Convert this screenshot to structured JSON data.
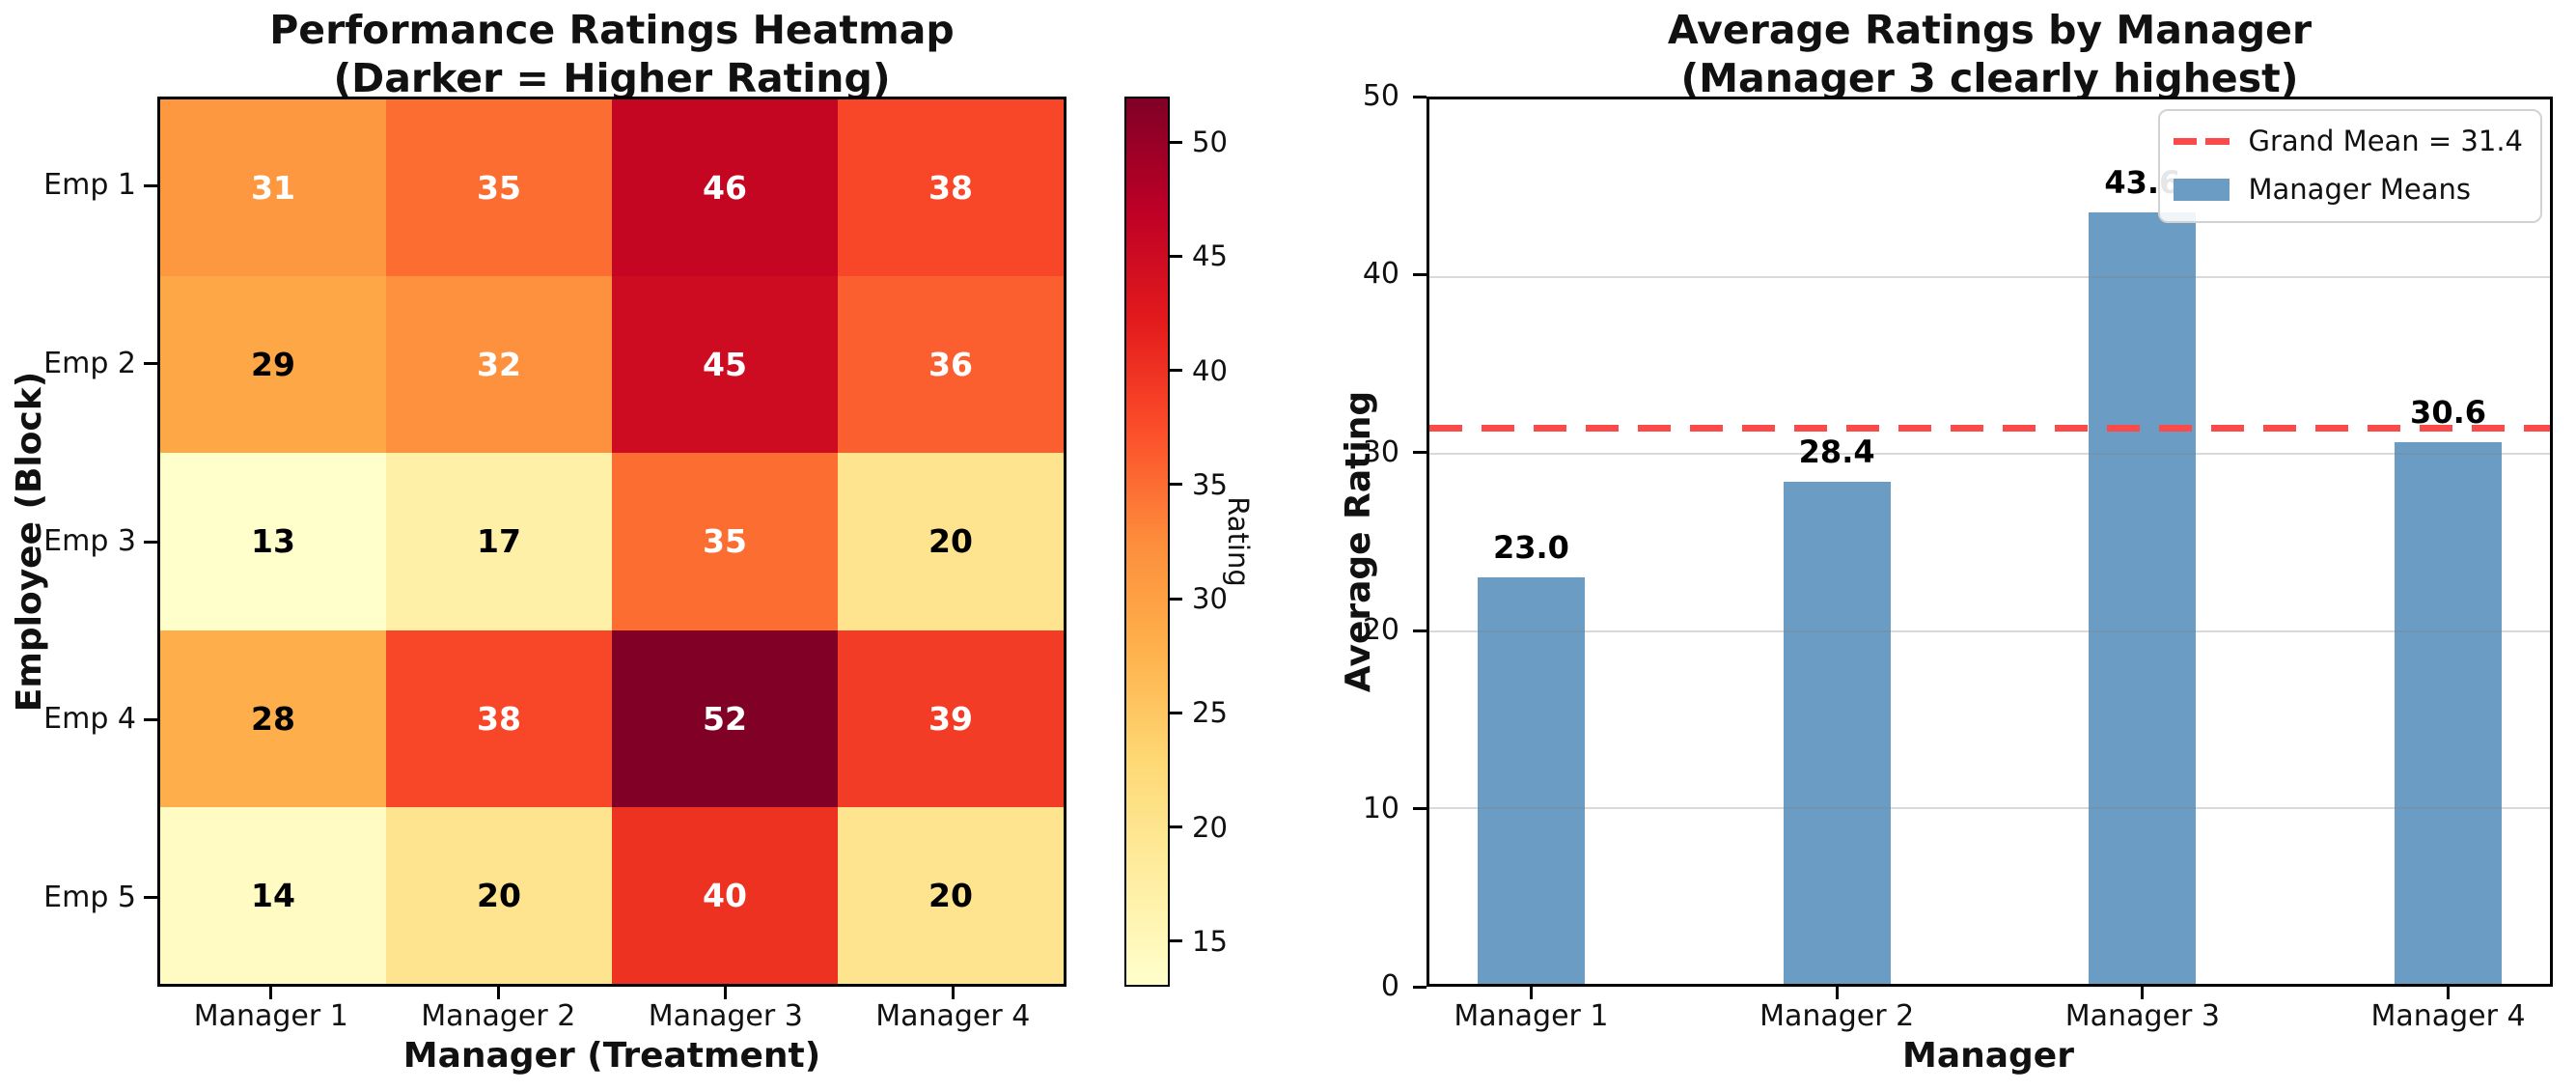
{
  "chart_data": [
    {
      "type": "heatmap",
      "title": "Performance Ratings Heatmap",
      "subtitle": "(Darker = Higher Rating)",
      "xlabel": "Manager (Treatment)",
      "ylabel": "Employee (Block)",
      "columns": [
        "Manager 1",
        "Manager 2",
        "Manager 3",
        "Manager 4"
      ],
      "rows": [
        "Emp 1",
        "Emp 2",
        "Emp 3",
        "Emp 4",
        "Emp 5"
      ],
      "values": [
        [
          31,
          35,
          46,
          38
        ],
        [
          29,
          32,
          45,
          36
        ],
        [
          13,
          17,
          35,
          20
        ],
        [
          28,
          38,
          52,
          39
        ],
        [
          14,
          20,
          40,
          20
        ]
      ],
      "cell_colors": [
        [
          "#fd9841",
          "#fc6d32",
          "#c50623",
          "#f84728"
        ],
        [
          "#fea747",
          "#fd913d",
          "#cd0b21",
          "#fc5f2f"
        ],
        [
          "#ffffcc",
          "#fff0a8",
          "#fc6d32",
          "#fee48e"
        ],
        [
          "#feaf4b",
          "#f84728",
          "#800026",
          "#f33c25"
        ],
        [
          "#fffbc3",
          "#fee48e",
          "#ee3222",
          "#fee48e"
        ]
      ],
      "cell_text_colors": [
        [
          "#ffffff",
          "#ffffff",
          "#ffffff",
          "#ffffff"
        ],
        [
          "#000000",
          "#ffffff",
          "#ffffff",
          "#ffffff"
        ],
        [
          "#000000",
          "#000000",
          "#ffffff",
          "#000000"
        ],
        [
          "#000000",
          "#ffffff",
          "#ffffff",
          "#ffffff"
        ],
        [
          "#000000",
          "#000000",
          "#ffffff",
          "#000000"
        ]
      ],
      "colorbar": {
        "label": "Rating",
        "vmin": 13,
        "vmax": 52,
        "ticks": [
          15,
          20,
          25,
          30,
          35,
          40,
          45,
          50
        ],
        "gradient_bottom_to_top": [
          "#ffffcc",
          "#ffeda0",
          "#fed976",
          "#feb24c",
          "#fd8d3c",
          "#fc4e2a",
          "#e31a1c",
          "#bd0026",
          "#800026"
        ]
      }
    },
    {
      "type": "bar",
      "title": "Average Ratings by Manager",
      "subtitle": "(Manager 3 clearly highest)",
      "xlabel": "Manager",
      "ylabel": "Average Rating",
      "categories": [
        "Manager 1",
        "Manager 2",
        "Manager 3",
        "Manager 4"
      ],
      "values": [
        23.0,
        28.4,
        43.6,
        30.6
      ],
      "bar_labels": [
        "23.0",
        "28.4",
        "43.6",
        "30.6"
      ],
      "ylim": [
        0,
        50
      ],
      "yticks": [
        0,
        10,
        20,
        30,
        40,
        50
      ],
      "grid": true,
      "grand_mean": 31.4,
      "legend": {
        "line_label": "Grand Mean = 31.4",
        "patch_label": "Manager Means",
        "position": "upper right"
      },
      "bar_color": "#6b9cc4",
      "mean_line_color": "#fa4a4a"
    }
  ]
}
